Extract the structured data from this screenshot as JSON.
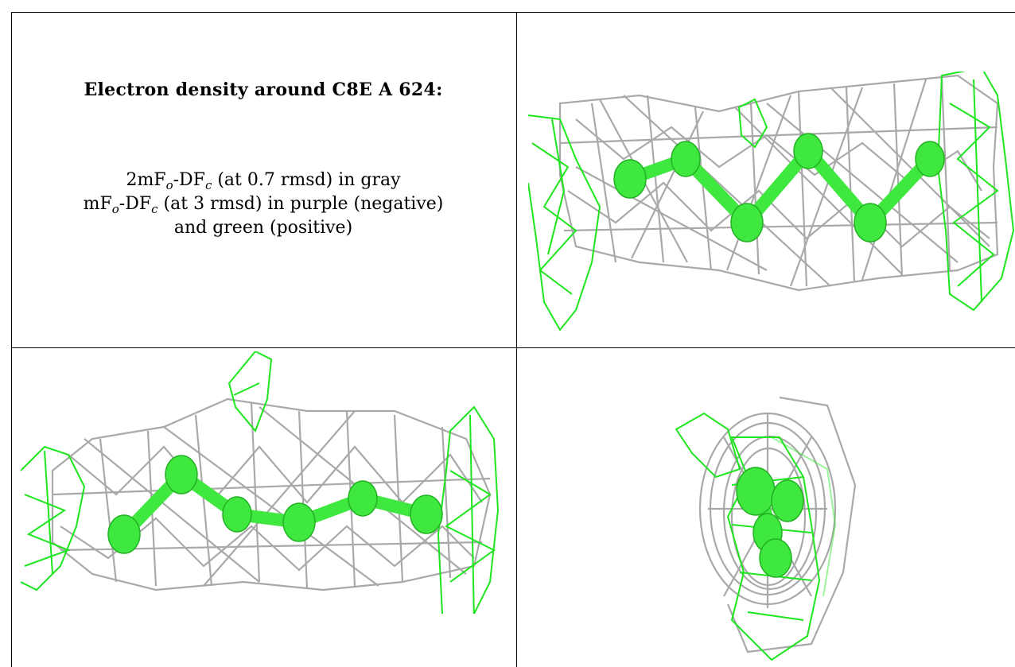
{
  "caption": {
    "title": "Electron density around C8E A 624:",
    "line1": {
      "prefix": "2mF",
      "sub1": "o",
      "mid": "-DF",
      "sub2": "c",
      "suffix": " (at 0.7 rmsd) in gray"
    },
    "line2": {
      "prefix": "mF",
      "sub1": "o",
      "mid": "-DF",
      "sub2": "c",
      "suffix": " (at 3 rmsd) in purple (negative)"
    },
    "line3": "and green (positive)"
  },
  "colors": {
    "mesh_gray": "#a9a9a9",
    "mesh_green": "#1ee61e",
    "atom_green": "#3ee83e",
    "border": "#000000"
  }
}
